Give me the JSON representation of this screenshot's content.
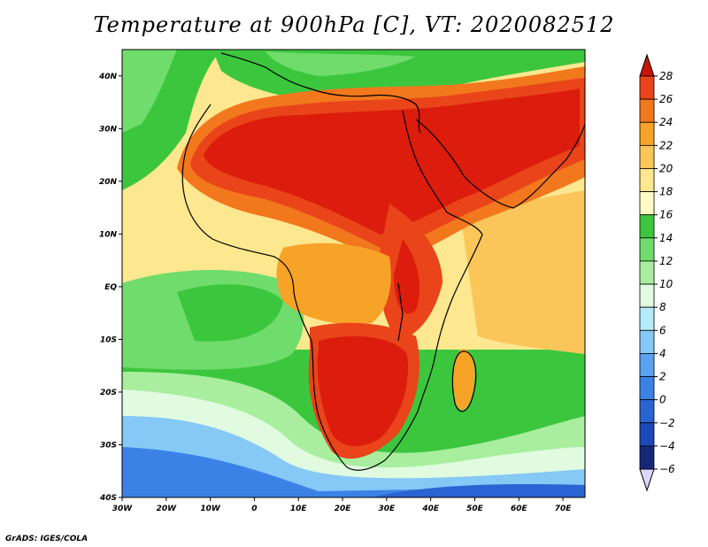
{
  "title": "Temperature at 900hPa [C], VT: 2020082512",
  "credit": "GrADS: IGES/COLA",
  "map": {
    "lon_range": [
      -30,
      75
    ],
    "lat_range": [
      -40,
      45
    ],
    "lat_ticks": [
      {
        "value": 40,
        "label": "40N"
      },
      {
        "value": 30,
        "label": "30N"
      },
      {
        "value": 20,
        "label": "20N"
      },
      {
        "value": 10,
        "label": "10N"
      },
      {
        "value": 0,
        "label": "EQ"
      },
      {
        "value": -10,
        "label": "10S"
      },
      {
        "value": -20,
        "label": "20S"
      },
      {
        "value": -30,
        "label": "30S"
      },
      {
        "value": -40,
        "label": "40S"
      }
    ],
    "lon_ticks": [
      {
        "value": -30,
        "label": "30W"
      },
      {
        "value": -20,
        "label": "20W"
      },
      {
        "value": -10,
        "label": "10W"
      },
      {
        "value": 0,
        "label": "0"
      },
      {
        "value": 10,
        "label": "10E"
      },
      {
        "value": 20,
        "label": "20E"
      },
      {
        "value": 30,
        "label": "30E"
      },
      {
        "value": 40,
        "label": "40E"
      },
      {
        "value": 50,
        "label": "50E"
      },
      {
        "value": 60,
        "label": "60E"
      },
      {
        "value": 70,
        "label": "70E"
      }
    ]
  },
  "colorbar": {
    "levels": [
      {
        "label": "28",
        "color": "#dc1c0c"
      },
      {
        "label": "26",
        "color": "#e9441a"
      },
      {
        "label": "24",
        "color": "#f2771d"
      },
      {
        "label": "22",
        "color": "#f7a327"
      },
      {
        "label": "20",
        "color": "#fac65a"
      },
      {
        "label": "18",
        "color": "#fde78f"
      },
      {
        "label": "16",
        "color": "#fefcc4"
      },
      {
        "label": "14",
        "color": "#3cc63e"
      },
      {
        "label": "12",
        "color": "#6fdc6c"
      },
      {
        "label": "10",
        "color": "#a8ee9e"
      },
      {
        "label": "8",
        "color": "#e0fbe0"
      },
      {
        "label": "6",
        "color": "#b4ecfa"
      },
      {
        "label": "4",
        "color": "#86c8f6"
      },
      {
        "label": "2",
        "color": "#5aa2f0"
      },
      {
        "label": "0",
        "color": "#3c82e6"
      },
      {
        "label": "−2",
        "color": "#2a64d2"
      },
      {
        "label": "−4",
        "color": "#1c48b8"
      },
      {
        "label": "−6",
        "color": "#14287a"
      }
    ],
    "top_cap_color": "#c8140a",
    "bottom_cap_color": "#dcd7fa"
  }
}
